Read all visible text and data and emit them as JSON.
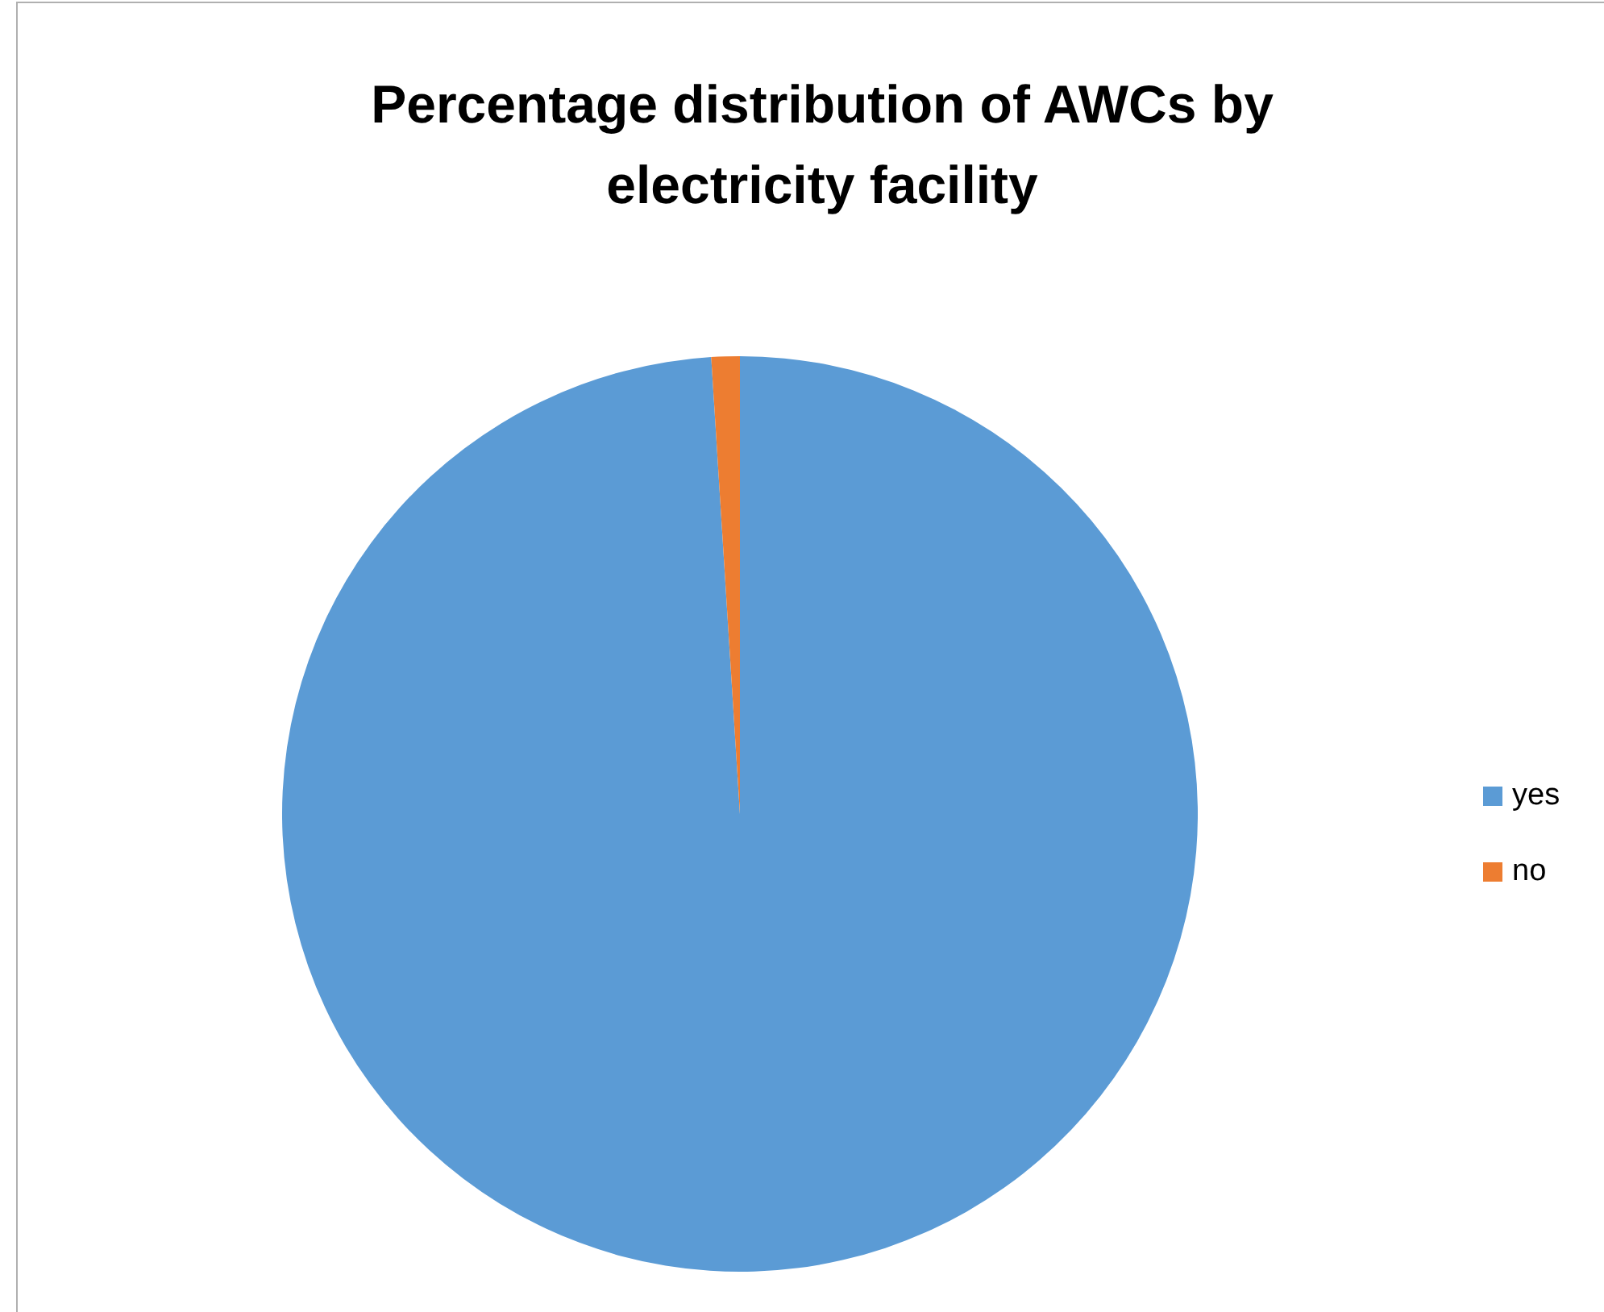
{
  "chart_data": {
    "type": "pie",
    "title": "Percentage distribution of AWCs by electricity facility",
    "categories": [
      "yes",
      "no"
    ],
    "values": [
      99,
      1
    ],
    "colors": [
      "#5b9bd5",
      "#ed7d31"
    ],
    "legend": "right"
  }
}
